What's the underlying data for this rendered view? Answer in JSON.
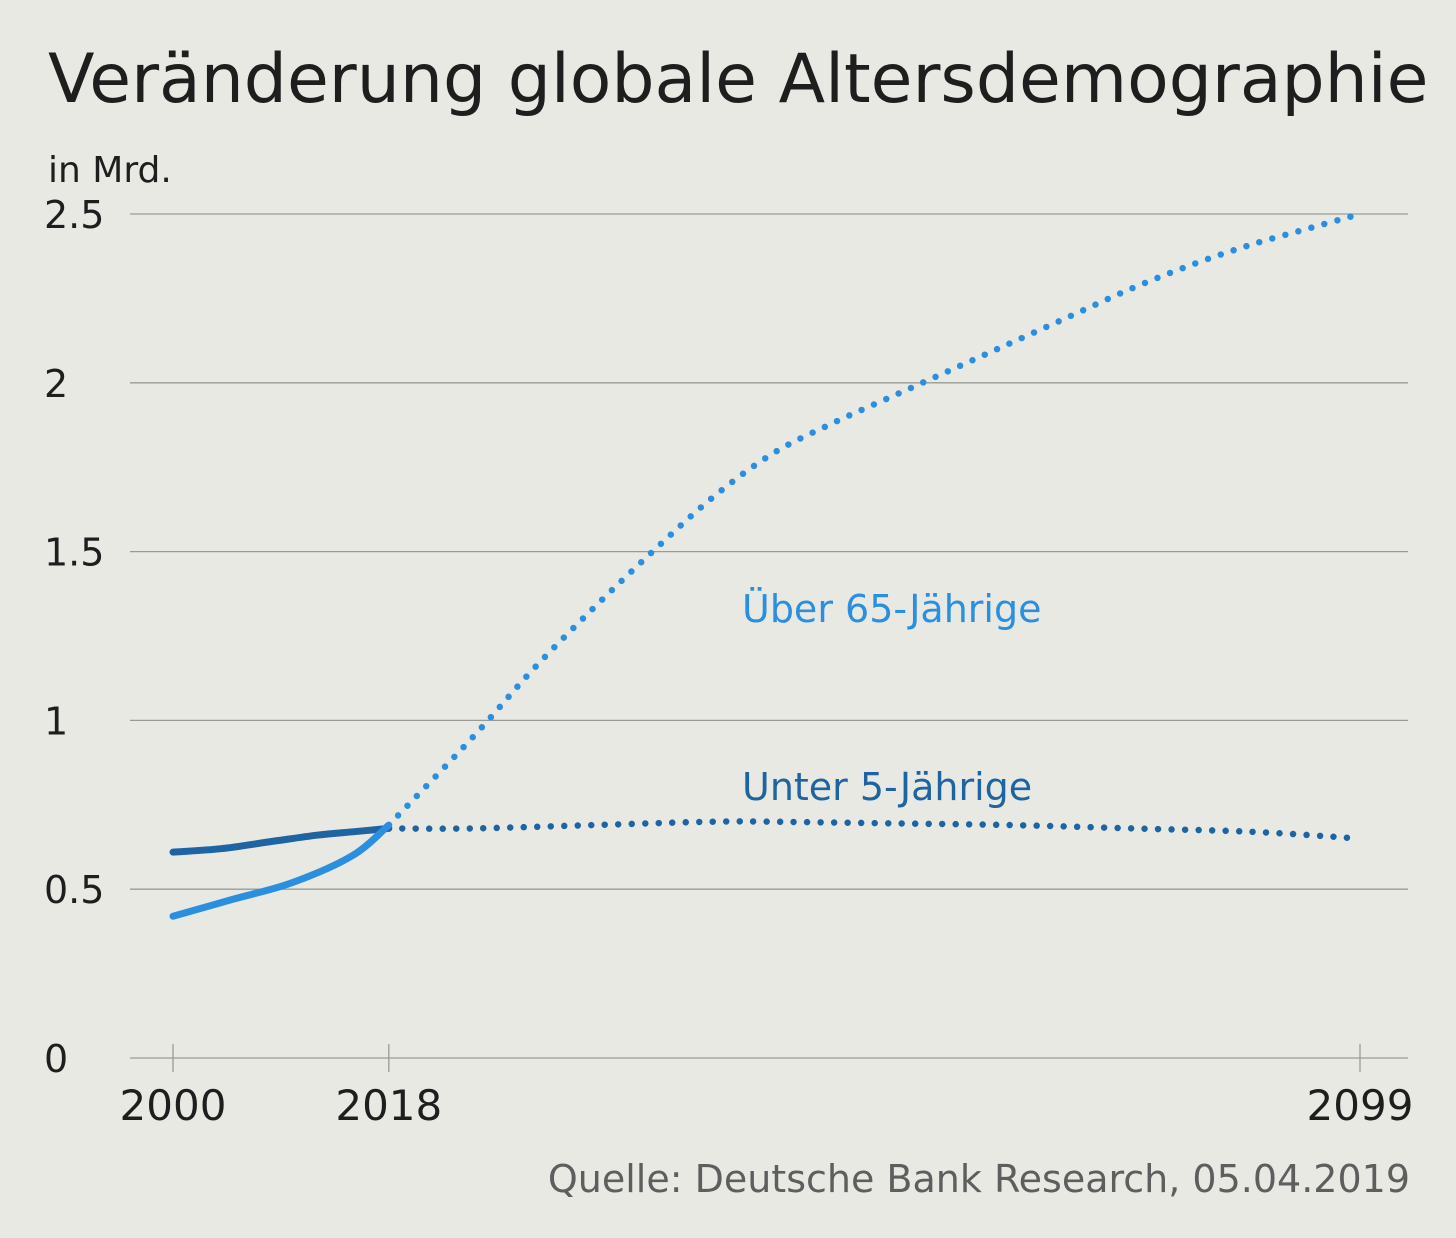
{
  "title": "Veränderung globale Altersdemographie",
  "source": "Quelle: Deutsche Bank Research, 05.04.2019",
  "colors": {
    "over65": "#2b8fe0",
    "under5": "#1e64a3",
    "background": "#e9e9e4"
  },
  "chart_data": {
    "type": "line",
    "ylabel": "in Mrd.",
    "xlabel": "",
    "xlim": [
      2000,
      2099
    ],
    "ylim": [
      0,
      2.5
    ],
    "x_ticks": [
      "2000",
      "2018",
      "2099"
    ],
    "y_ticks": [
      "0",
      "0.5",
      "1",
      "1.5",
      "2",
      "2.5"
    ],
    "grid": true,
    "legend": "inline labels",
    "series": [
      {
        "name": "Über 65-Jährige",
        "color_key": "over65",
        "points": [
          {
            "x": 2000,
            "y": 0.42
          },
          {
            "x": 2005,
            "y": 0.47
          },
          {
            "x": 2010,
            "y": 0.52
          },
          {
            "x": 2015,
            "y": 0.6
          },
          {
            "x": 2018,
            "y": 0.69
          },
          {
            "x": 2025,
            "y": 0.95
          },
          {
            "x": 2030,
            "y": 1.15
          },
          {
            "x": 2035,
            "y": 1.33
          },
          {
            "x": 2040,
            "y": 1.5
          },
          {
            "x": 2045,
            "y": 1.66
          },
          {
            "x": 2050,
            "y": 1.79
          },
          {
            "x": 2055,
            "y": 1.88
          },
          {
            "x": 2060,
            "y": 1.96
          },
          {
            "x": 2065,
            "y": 2.04
          },
          {
            "x": 2070,
            "y": 2.12
          },
          {
            "x": 2075,
            "y": 2.2
          },
          {
            "x": 2080,
            "y": 2.28
          },
          {
            "x": 2085,
            "y": 2.35
          },
          {
            "x": 2090,
            "y": 2.41
          },
          {
            "x": 2095,
            "y": 2.46
          },
          {
            "x": 2099,
            "y": 2.5
          }
        ]
      },
      {
        "name": "Unter 5-Jährige",
        "color_key": "under5",
        "points": [
          {
            "x": 2000,
            "y": 0.61
          },
          {
            "x": 2004,
            "y": 0.62
          },
          {
            "x": 2008,
            "y": 0.64
          },
          {
            "x": 2012,
            "y": 0.66
          },
          {
            "x": 2015,
            "y": 0.67
          },
          {
            "x": 2018,
            "y": 0.68
          },
          {
            "x": 2025,
            "y": 0.68
          },
          {
            "x": 2035,
            "y": 0.69
          },
          {
            "x": 2045,
            "y": 0.7
          },
          {
            "x": 2050,
            "y": 0.7
          },
          {
            "x": 2060,
            "y": 0.695
          },
          {
            "x": 2070,
            "y": 0.69
          },
          {
            "x": 2080,
            "y": 0.68
          },
          {
            "x": 2090,
            "y": 0.67
          },
          {
            "x": 2099,
            "y": 0.65
          }
        ]
      }
    ],
    "projection_from": 2018
  }
}
